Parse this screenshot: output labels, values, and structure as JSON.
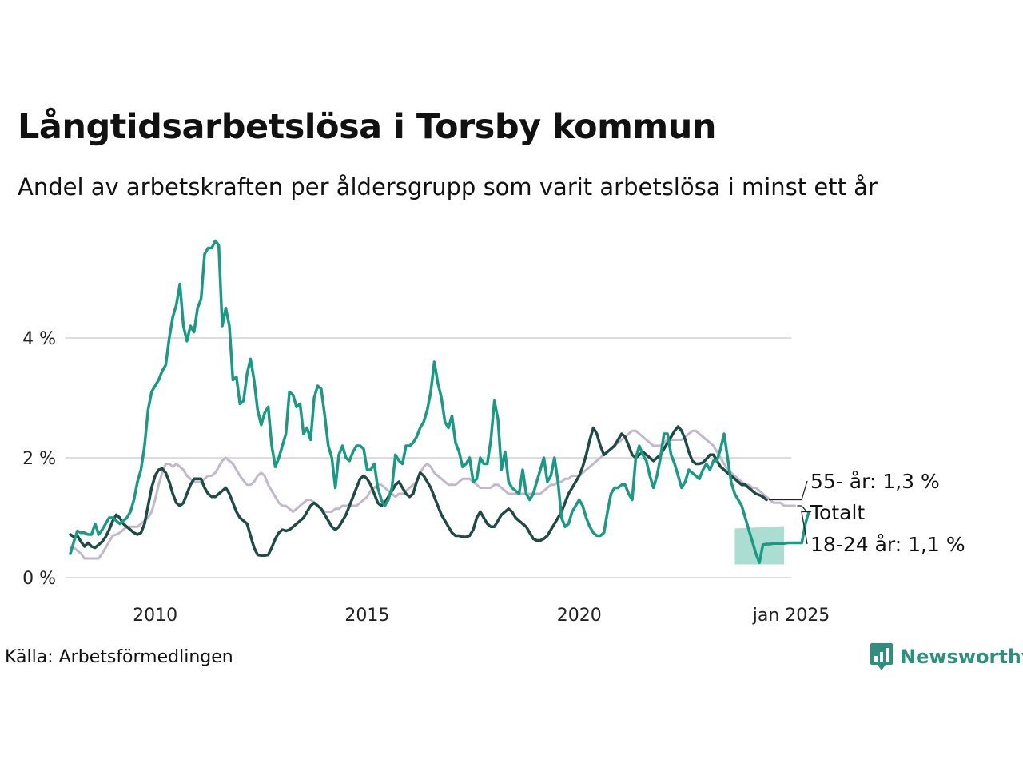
{
  "header": {
    "title": "Långtidsarbetslösa i Torsby kommun",
    "subtitle": "Andel av arbetskraften per åldersgrupp som varit arbetslösa i minst ett år"
  },
  "footer": {
    "source": "Källa: Arbetsförmedlingen",
    "brand": "Newsworthy"
  },
  "colors": {
    "youth": "#1a9a82",
    "senior": "#1f4a45",
    "total": "#c2b8cb",
    "grid": "#dddddd",
    "band": "#8fd1c3"
  },
  "chart_data": {
    "type": "line",
    "x_start": 2008.0,
    "x_step_months": 1,
    "xlim": [
      2008.0,
      2025.0
    ],
    "ylim": [
      0,
      5.7
    ],
    "y_ticks": [
      0,
      2,
      4
    ],
    "y_tick_labels": [
      "0 %",
      "2 %",
      "4 %"
    ],
    "x_ticks": [
      2010,
      2015,
      2020,
      2025
    ],
    "x_tick_labels": [
      "2010",
      "2015",
      "2020",
      "jan 2025"
    ],
    "grid": true,
    "series": [
      {
        "name": "Totalt",
        "key": "total",
        "label": "Totalt",
        "values": [
          0.5,
          0.5,
          0.45,
          0.4,
          0.32,
          0.32,
          0.32,
          0.32,
          0.32,
          0.4,
          0.5,
          0.6,
          0.7,
          0.72,
          0.75,
          0.8,
          0.85,
          0.85,
          0.85,
          0.85,
          0.9,
          0.95,
          1.0,
          1.1,
          1.3,
          1.55,
          1.75,
          1.9,
          1.9,
          1.85,
          1.9,
          1.85,
          1.8,
          1.7,
          1.65,
          1.6,
          1.6,
          1.6,
          1.65,
          1.7,
          1.7,
          1.75,
          1.85,
          1.95,
          2.0,
          1.95,
          1.9,
          1.8,
          1.7,
          1.62,
          1.55,
          1.55,
          1.6,
          1.7,
          1.75,
          1.7,
          1.55,
          1.45,
          1.35,
          1.25,
          1.2,
          1.2,
          1.15,
          1.1,
          1.15,
          1.2,
          1.25,
          1.3,
          1.3,
          1.25,
          1.2,
          1.15,
          1.1,
          1.1,
          1.1,
          1.15,
          1.15,
          1.2,
          1.2,
          1.2,
          1.2,
          1.2,
          1.25,
          1.3,
          1.35,
          1.45,
          1.5,
          1.55,
          1.55,
          1.5,
          1.45,
          1.4,
          1.35,
          1.4,
          1.4,
          1.45,
          1.5,
          1.55,
          1.6,
          1.75,
          1.85,
          1.9,
          1.85,
          1.75,
          1.7,
          1.65,
          1.6,
          1.55,
          1.55,
          1.55,
          1.6,
          1.65,
          1.65,
          1.65,
          1.6,
          1.55,
          1.5,
          1.5,
          1.5,
          1.5,
          1.55,
          1.55,
          1.5,
          1.45,
          1.4,
          1.4,
          1.4,
          1.4,
          1.4,
          1.4,
          1.4,
          1.4,
          1.4,
          1.4,
          1.45,
          1.5,
          1.55,
          1.55,
          1.6,
          1.6,
          1.65,
          1.65,
          1.7,
          1.7,
          1.7,
          1.75,
          1.8,
          1.85,
          1.9,
          1.95,
          2.0,
          2.05,
          2.1,
          2.15,
          2.2,
          2.25,
          2.3,
          2.35,
          2.4,
          2.45,
          2.45,
          2.4,
          2.35,
          2.3,
          2.25,
          2.2,
          2.2,
          2.2,
          2.25,
          2.3,
          2.3,
          2.3,
          2.3,
          2.3,
          2.35,
          2.4,
          2.45,
          2.45,
          2.4,
          2.35,
          2.3,
          2.25,
          2.2,
          2.1,
          2.0,
          1.9,
          1.8,
          1.75,
          1.7,
          1.65,
          1.6,
          1.55,
          1.55,
          1.5,
          1.5,
          1.45,
          1.4,
          1.35,
          1.3,
          1.25,
          1.25,
          1.25,
          1.2,
          1.2,
          1.2,
          1.2
        ]
      },
      {
        "name": "55- år",
        "key": "senior",
        "label": "55- år: 1,3 %",
        "values": [
          0.72,
          0.68,
          0.7,
          0.6,
          0.52,
          0.58,
          0.52,
          0.5,
          0.55,
          0.6,
          0.68,
          0.8,
          0.95,
          1.05,
          1.0,
          0.9,
          0.85,
          0.8,
          0.75,
          0.72,
          0.75,
          0.9,
          1.2,
          1.5,
          1.7,
          1.8,
          1.82,
          1.75,
          1.6,
          1.4,
          1.25,
          1.2,
          1.25,
          1.4,
          1.55,
          1.65,
          1.65,
          1.65,
          1.5,
          1.4,
          1.35,
          1.35,
          1.4,
          1.45,
          1.5,
          1.4,
          1.25,
          1.1,
          1.0,
          0.95,
          0.9,
          0.7,
          0.5,
          0.38,
          0.37,
          0.37,
          0.38,
          0.5,
          0.65,
          0.75,
          0.8,
          0.78,
          0.8,
          0.85,
          0.9,
          0.95,
          1.0,
          1.1,
          1.2,
          1.25,
          1.2,
          1.15,
          1.05,
          0.95,
          0.85,
          0.8,
          0.85,
          0.95,
          1.05,
          1.2,
          1.35,
          1.5,
          1.65,
          1.7,
          1.65,
          1.55,
          1.4,
          1.25,
          1.2,
          1.25,
          1.35,
          1.45,
          1.55,
          1.6,
          1.5,
          1.4,
          1.35,
          1.4,
          1.6,
          1.75,
          1.7,
          1.6,
          1.5,
          1.35,
          1.2,
          1.05,
          0.95,
          0.85,
          0.75,
          0.7,
          0.7,
          0.68,
          0.68,
          0.7,
          0.8,
          1.0,
          1.1,
          1.0,
          0.9,
          0.85,
          0.85,
          0.95,
          1.05,
          1.1,
          1.15,
          1.1,
          1.0,
          0.95,
          0.9,
          0.85,
          0.75,
          0.65,
          0.62,
          0.62,
          0.65,
          0.7,
          0.8,
          0.9,
          1.0,
          1.1,
          1.25,
          1.4,
          1.5,
          1.6,
          1.7,
          1.85,
          2.05,
          2.3,
          2.5,
          2.4,
          2.2,
          2.05,
          2.1,
          2.15,
          2.2,
          2.3,
          2.4,
          2.35,
          2.2,
          2.05,
          2.0,
          2.05,
          2.1,
          2.05,
          2.0,
          1.95,
          2.0,
          2.05,
          2.15,
          2.25,
          2.35,
          2.45,
          2.52,
          2.45,
          2.3,
          2.1,
          1.95,
          1.9,
          1.9,
          1.92,
          1.98,
          2.05,
          2.05,
          1.95,
          1.85,
          1.8,
          1.75,
          1.7,
          1.65,
          1.6,
          1.55,
          1.55,
          1.5,
          1.45,
          1.4,
          1.38,
          1.35,
          1.3
        ]
      },
      {
        "name": "18-24 år",
        "key": "youth",
        "label": "18-24 år: 1,1 %",
        "values": [
          0.4,
          0.6,
          0.78,
          0.75,
          0.75,
          0.72,
          0.72,
          0.9,
          0.72,
          0.8,
          0.9,
          1.0,
          1.0,
          0.95,
          0.9,
          0.95,
          1.0,
          1.1,
          1.3,
          1.6,
          1.8,
          2.2,
          2.8,
          3.1,
          3.2,
          3.3,
          3.45,
          3.55,
          4.0,
          4.35,
          4.55,
          4.9,
          4.2,
          3.95,
          4.2,
          4.1,
          4.5,
          4.65,
          5.4,
          5.5,
          5.5,
          5.62,
          5.55,
          4.2,
          4.5,
          4.2,
          3.3,
          3.35,
          2.9,
          2.95,
          3.4,
          3.65,
          3.3,
          2.8,
          2.55,
          2.75,
          2.85,
          2.2,
          1.85,
          2.0,
          2.2,
          2.4,
          3.1,
          3.05,
          2.85,
          2.9,
          2.4,
          2.5,
          2.3,
          3.0,
          3.2,
          3.15,
          2.7,
          2.2,
          2.0,
          1.5,
          2.05,
          2.2,
          2.0,
          1.95,
          2.1,
          2.2,
          2.2,
          2.15,
          1.8,
          1.8,
          1.9,
          1.5,
          1.3,
          1.2,
          1.3,
          1.5,
          2.05,
          1.95,
          1.9,
          2.2,
          2.2,
          2.25,
          2.35,
          2.5,
          2.6,
          2.8,
          3.1,
          3.6,
          3.25,
          3.0,
          2.6,
          2.5,
          2.7,
          2.25,
          2.1,
          1.85,
          1.9,
          2.0,
          1.6,
          1.65,
          2.0,
          1.9,
          1.9,
          2.3,
          2.95,
          2.65,
          1.8,
          2.1,
          1.6,
          1.5,
          1.45,
          1.4,
          1.8,
          1.4,
          1.3,
          1.4,
          1.6,
          1.8,
          2.0,
          1.6,
          1.7,
          2.0,
          1.6,
          1.0,
          0.85,
          0.9,
          1.1,
          1.2,
          1.3,
          1.2,
          1.0,
          0.85,
          0.75,
          0.7,
          0.7,
          0.75,
          1.1,
          1.4,
          1.5,
          1.5,
          1.55,
          1.55,
          1.4,
          1.3,
          2.0,
          2.2,
          2.05,
          1.95,
          1.7,
          1.5,
          1.7,
          2.0,
          2.4,
          2.4,
          2.05,
          1.9,
          1.7,
          1.5,
          1.6,
          1.8,
          1.75,
          1.7,
          1.65,
          1.8,
          1.9,
          1.8,
          1.95,
          1.95,
          2.15,
          2.4,
          2.0,
          1.6,
          1.4,
          1.3,
          1.2,
          1.0,
          0.8,
          0.6,
          0.4,
          0.25,
          0.55,
          0.56,
          0.56,
          0.57,
          0.57,
          0.57,
          0.57,
          0.58,
          0.58,
          0.58,
          0.58,
          0.58,
          0.9,
          1.1
        ]
      }
    ],
    "uncertainty_band": {
      "series": "18-24 år",
      "start": 2023.67,
      "end": 2024.83,
      "lower_start": 0.22,
      "lower_end": 0.22,
      "upper_start": 0.82,
      "upper_end": 0.86
    }
  }
}
